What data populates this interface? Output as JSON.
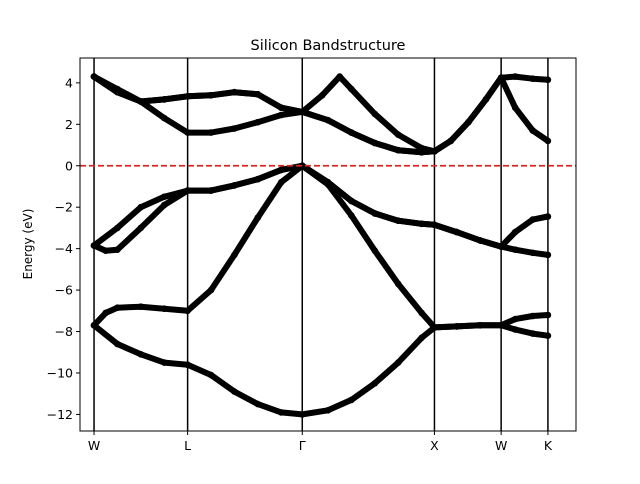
{
  "chart_data": {
    "type": "line",
    "title": "Silicon Bandstructure",
    "xlabel": "",
    "ylabel": "Energy (eV)",
    "ylim": [
      -12.8,
      5.2
    ],
    "xlim": [
      -0.12,
      4.12
    ],
    "grid": false,
    "legend": "none",
    "kpoint_labels": [
      "W",
      "L",
      "Γ",
      "X",
      "W",
      "K"
    ],
    "kpoint_positions": [
      0.0,
      0.8,
      1.78,
      2.91,
      3.48,
      3.88
    ],
    "yticks": [
      4,
      2,
      0,
      -2,
      -4,
      -6,
      -8,
      -10,
      -12
    ],
    "fermi_level": {
      "energy": 0,
      "color": "#d62728",
      "style": "dashed"
    },
    "band_color": "#000000",
    "series": [
      {
        "name": "band 1",
        "x": [
          0.0,
          0.2,
          0.4,
          0.6,
          0.8,
          1.0,
          1.2,
          1.4,
          1.6,
          1.78,
          2.0,
          2.2,
          2.4,
          2.6,
          2.8,
          2.91,
          3.1,
          3.3,
          3.48,
          3.6,
          3.75,
          3.88
        ],
        "y": [
          -7.7,
          -8.6,
          -9.1,
          -9.5,
          -9.6,
          -10.1,
          -10.9,
          -11.5,
          -11.9,
          -12.0,
          -11.8,
          -11.3,
          -10.5,
          -9.5,
          -8.3,
          -7.8,
          -7.75,
          -7.7,
          -7.7,
          -7.9,
          -8.1,
          -8.2
        ]
      },
      {
        "name": "band 2",
        "x": [
          0.0,
          0.1,
          0.2,
          0.4,
          0.6,
          0.8,
          1.0,
          1.2,
          1.4,
          1.6,
          1.78,
          2.0,
          2.2,
          2.4,
          2.6,
          2.8,
          2.91,
          3.1,
          3.3,
          3.48,
          3.6,
          3.75,
          3.88
        ],
        "y": [
          -7.7,
          -7.1,
          -6.85,
          -6.8,
          -6.9,
          -7.0,
          -6.0,
          -4.3,
          -2.5,
          -0.8,
          0.0,
          -0.9,
          -2.4,
          -4.1,
          -5.7,
          -7.1,
          -7.8,
          -7.75,
          -7.7,
          -7.7,
          -7.4,
          -7.25,
          -7.2
        ]
      },
      {
        "name": "band 3",
        "x": [
          0.0,
          0.1,
          0.2,
          0.4,
          0.6,
          0.8,
          1.0,
          1.2,
          1.4,
          1.6,
          1.78,
          2.0,
          2.2,
          2.4,
          2.6,
          2.8,
          2.91,
          3.1,
          3.3,
          3.48,
          3.6,
          3.75,
          3.88
        ],
        "y": [
          -3.85,
          -4.1,
          -4.05,
          -3.0,
          -1.9,
          -1.2,
          -1.2,
          -0.95,
          -0.65,
          -0.2,
          0.0,
          -0.8,
          -1.7,
          -2.3,
          -2.65,
          -2.8,
          -2.85,
          -3.2,
          -3.6,
          -3.9,
          -3.2,
          -2.6,
          -2.45
        ]
      },
      {
        "name": "band 4",
        "x": [
          0.0,
          0.2,
          0.4,
          0.6,
          0.8,
          1.0,
          1.2,
          1.4,
          1.6,
          1.78,
          2.0,
          2.2,
          2.4,
          2.6,
          2.8,
          2.91,
          3.1,
          3.3,
          3.48,
          3.6,
          3.75,
          3.88
        ],
        "y": [
          -3.85,
          -3.0,
          -2.0,
          -1.5,
          -1.2,
          -1.2,
          -0.95,
          -0.65,
          -0.2,
          0.0,
          -0.8,
          -1.7,
          -2.3,
          -2.65,
          -2.8,
          -2.85,
          -3.2,
          -3.6,
          -3.9,
          -4.05,
          -4.2,
          -4.3
        ]
      },
      {
        "name": "band 5",
        "x": [
          0.0,
          0.2,
          0.4,
          0.6,
          0.8,
          1.0,
          1.2,
          1.4,
          1.6,
          1.78,
          2.0,
          2.2,
          2.4,
          2.6,
          2.8,
          2.91,
          3.05,
          3.2,
          3.35,
          3.48,
          3.6,
          3.75,
          3.88
        ],
        "y": [
          4.3,
          3.7,
          3.1,
          2.3,
          1.6,
          1.6,
          1.8,
          2.1,
          2.45,
          2.6,
          2.2,
          1.6,
          1.1,
          0.75,
          0.65,
          0.7,
          1.2,
          2.1,
          3.2,
          4.25,
          2.8,
          1.7,
          1.2
        ]
      },
      {
        "name": "band 6",
        "x": [
          0.0,
          0.2,
          0.4,
          0.6,
          0.8,
          1.0,
          1.2,
          1.4,
          1.6,
          1.78,
          2.0,
          2.2,
          2.4,
          2.6,
          2.8,
          2.91,
          3.05,
          3.2,
          3.35,
          3.48,
          3.6,
          3.75,
          3.88
        ],
        "y": [
          4.3,
          3.55,
          3.1,
          3.2,
          3.35,
          3.4,
          3.55,
          3.45,
          2.8,
          2.6,
          2.2,
          1.6,
          1.1,
          0.75,
          0.65,
          0.7,
          1.2,
          2.1,
          3.2,
          4.25,
          4.3,
          4.2,
          4.15
        ]
      },
      {
        "name": "band 7",
        "x": [
          0.0,
          0.2,
          0.4,
          0.6,
          0.8,
          1.0,
          1.2,
          1.4,
          1.6,
          1.78,
          1.95,
          2.1,
          2.2,
          2.4,
          2.6,
          2.8,
          2.91
        ],
        "y": [
          4.3,
          3.55,
          3.1,
          3.2,
          3.35,
          3.4,
          3.55,
          3.45,
          2.8,
          2.6,
          3.4,
          4.3,
          3.7,
          2.5,
          1.5,
          0.85,
          0.7
        ]
      }
    ]
  }
}
